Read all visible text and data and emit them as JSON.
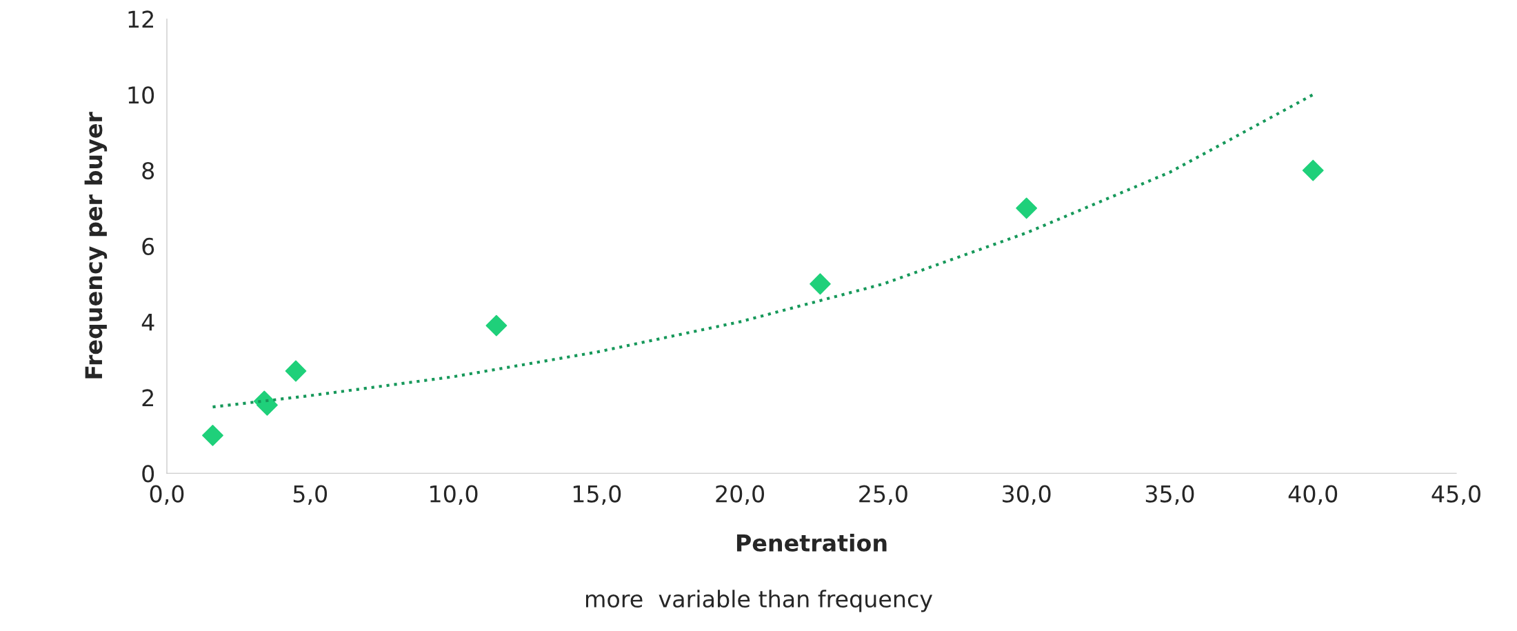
{
  "chart_data": {
    "type": "scatter",
    "xlabel": "Penetration",
    "ylabel": "Frequency per buyer",
    "annotations": [
      "more  variable than frequency"
    ],
    "marker": "diamond",
    "grid": false,
    "legend": false,
    "xlim": [
      0,
      45
    ],
    "ylim": [
      0,
      12
    ],
    "xticks": [
      {
        "value": 0,
        "label": "0,0"
      },
      {
        "value": 5,
        "label": "5,0"
      },
      {
        "value": 10,
        "label": "10,0"
      },
      {
        "value": 15,
        "label": "15,0"
      },
      {
        "value": 20,
        "label": "20,0"
      },
      {
        "value": 25,
        "label": "25,0"
      },
      {
        "value": 30,
        "label": "30,0"
      },
      {
        "value": 35,
        "label": "35,0"
      },
      {
        "value": 40,
        "label": "40,0"
      },
      {
        "value": 45,
        "label": "45,0"
      }
    ],
    "yticks": [
      0,
      2,
      4,
      6,
      8,
      10,
      12
    ],
    "series": [
      {
        "color": "#1fd07a",
        "x": [
          1.6,
          3.4,
          3.5,
          4.5,
          11.5,
          22.8,
          30.0,
          40.0
        ],
        "values": [
          1.0,
          1.9,
          1.8,
          2.7,
          3.9,
          5.0,
          7.0,
          8.0
        ]
      },
      {
        "type": "line",
        "color": "#16985a",
        "line_style": "dotted",
        "marker": "none",
        "x": [
          1.6,
          5,
          10,
          15,
          20,
          25,
          30,
          35,
          40
        ],
        "values": [
          1.75,
          2.05,
          2.55,
          3.2,
          4.0,
          5.0,
          6.35,
          7.95,
          10.0
        ]
      }
    ]
  }
}
